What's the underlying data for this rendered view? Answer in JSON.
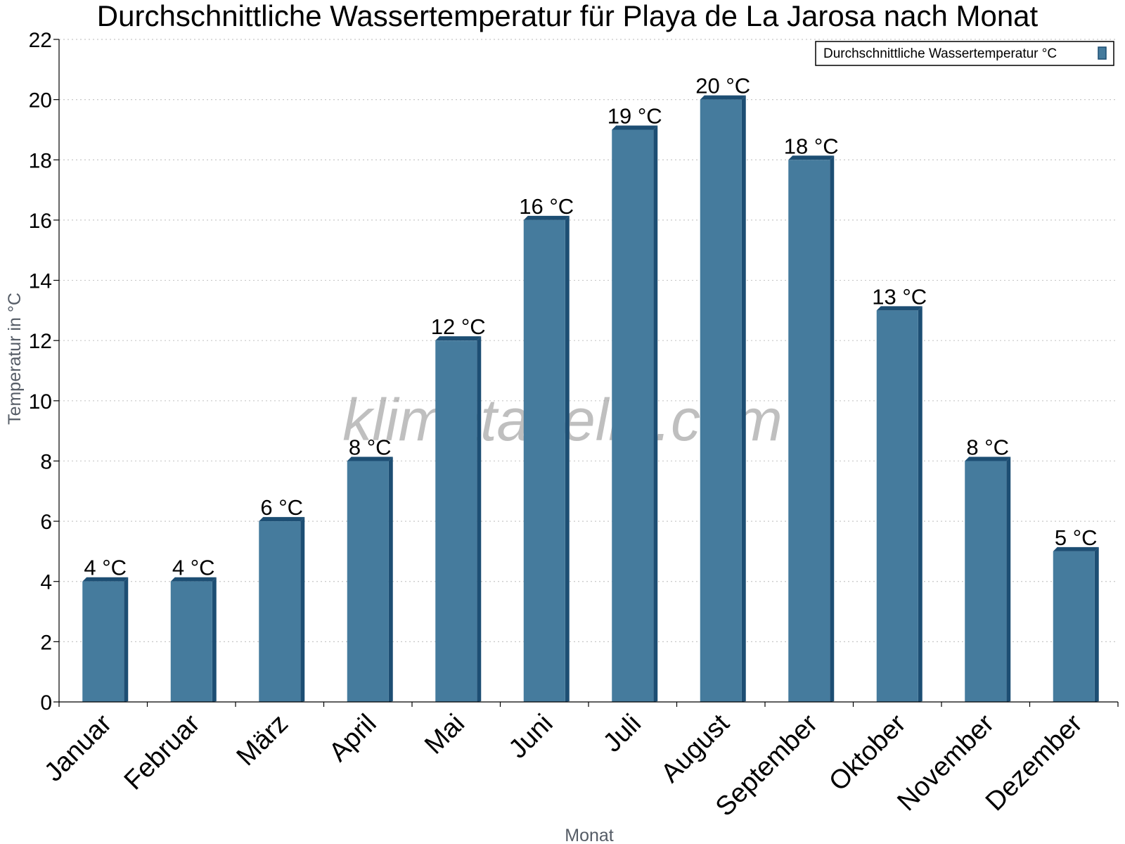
{
  "chart_data": {
    "type": "bar",
    "title": "Durchschnittliche Wassertemperatur für Playa de La Jarosa nach Monat",
    "xlabel": "Monat",
    "ylabel": "Temperatur in °C",
    "categories": [
      "Januar",
      "Februar",
      "März",
      "April",
      "Mai",
      "Juni",
      "Juli",
      "August",
      "September",
      "Oktober",
      "November",
      "Dezember"
    ],
    "series": [
      {
        "name": "Durchschnittliche Wassertemperatur °C",
        "values": [
          4,
          4,
          6,
          8,
          12,
          16,
          19,
          20,
          18,
          13,
          8,
          5
        ],
        "data_labels": [
          "4 °C",
          "4 °C",
          "6 °C",
          "8 °C",
          "12 °C",
          "16 °C",
          "19 °C",
          "20 °C",
          "18 °C",
          "13 °C",
          "8 °C",
          "5 °C"
        ],
        "color": "#457b9d",
        "shade_color": "#1d4e73"
      }
    ],
    "ylim": [
      0,
      22
    ],
    "yticks": [
      0,
      2,
      4,
      6,
      8,
      10,
      12,
      14,
      16,
      18,
      20,
      22
    ],
    "grid": true,
    "legend_position": "top-right",
    "watermark": "klimatabelle.com"
  }
}
